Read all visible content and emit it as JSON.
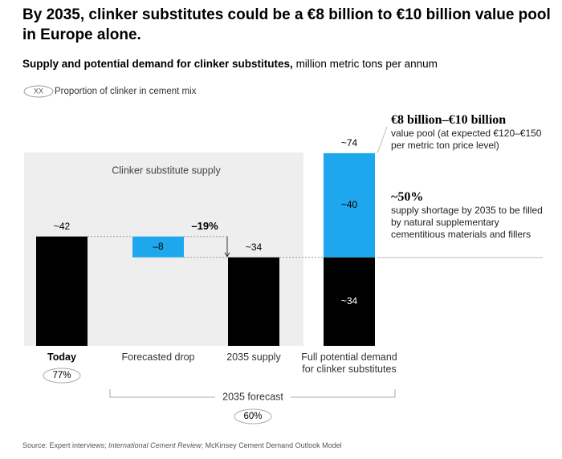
{
  "chart_data": {
    "type": "waterfall",
    "title": "By 2035, clinker substitutes could be a €8 billion to €10 billion value pool in Europe alone.",
    "subtitle": "Supply and potential demand for clinker substitutes,",
    "units": "million metric tons per annum",
    "legend_note": {
      "marker": "XX",
      "text": "Proportion of clinker in cement mix"
    },
    "panel_label": "Clinker substitute supply",
    "categories": [
      "Today",
      "Forecasted drop",
      "2035 supply",
      "Full potential demand for clinker substitutes"
    ],
    "kinds": [
      "total",
      "delta",
      "total",
      "total"
    ],
    "series": [
      {
        "color": "#000000",
        "values": [
          42,
          null,
          34,
          34
        ],
        "value_labels": [
          "~42",
          null,
          "~34",
          "~34"
        ]
      },
      {
        "color": "#1ea7ec",
        "values": [
          null,
          -8,
          null,
          40
        ],
        "value_labels": [
          null,
          "–8",
          null,
          "~40"
        ]
      }
    ],
    "totals": [
      null,
      null,
      null,
      74
    ],
    "total_labels": [
      null,
      null,
      null,
      "~74"
    ],
    "change": -19,
    "change_label": "–19%",
    "today_share": "77%",
    "forecast_group": {
      "label": "2035 forecast",
      "share": "60%"
    },
    "annotations": [
      {
        "heading": "€8 billion–€10 billion",
        "text": "value pool (at expected €120–€150 per metric ton price level)"
      },
      {
        "heading": "~50%",
        "text": "supply shortage by 2035 to be filled by natural supplementary cementitious materials and fillers"
      }
    ],
    "source": [
      "Source: Expert interviews; ",
      "International Cement Review",
      "; McKinsey Cement Demand Outlook Model"
    ]
  }
}
